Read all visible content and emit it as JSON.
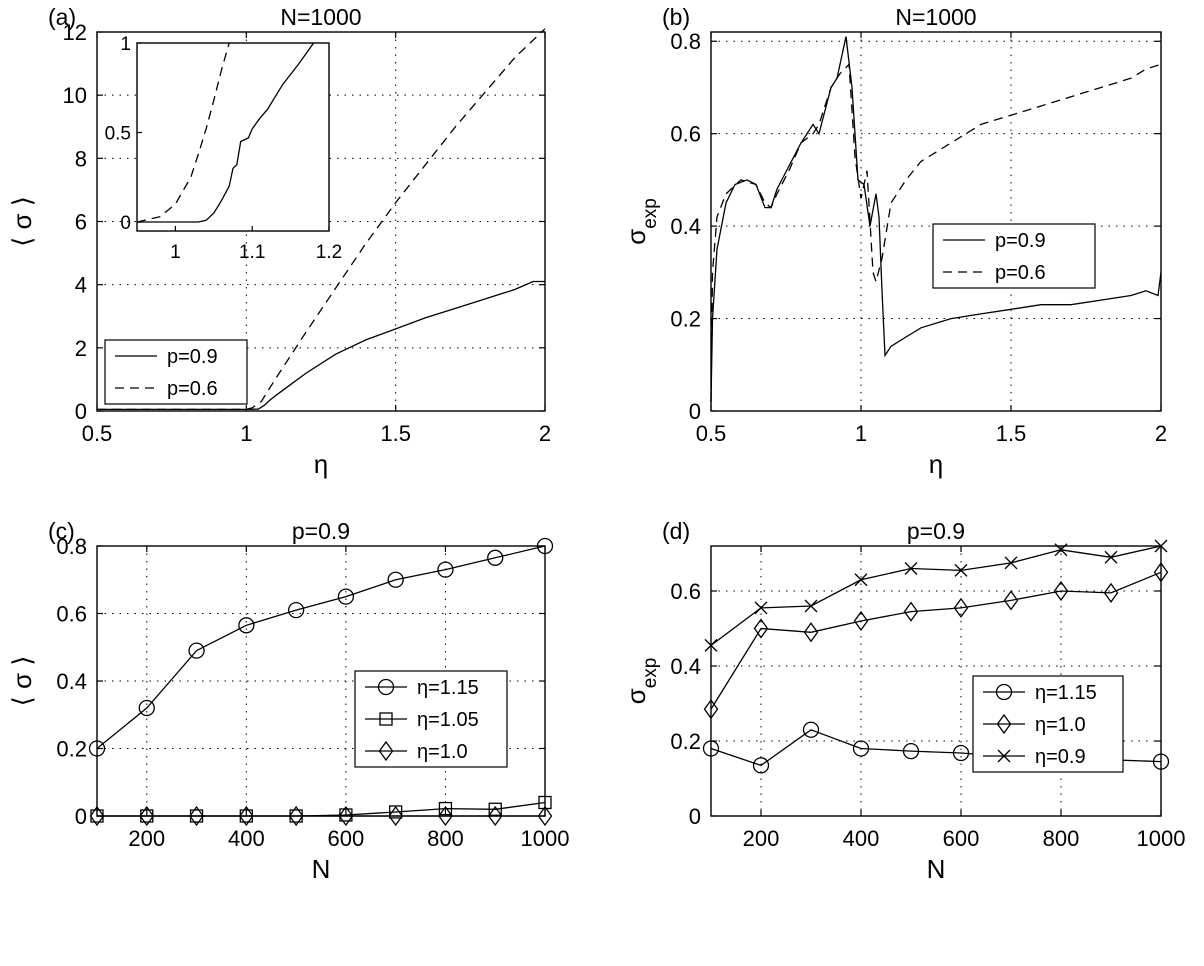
{
  "chart_data": [
    {
      "panel": "(a)",
      "type": "line",
      "title": "N=1000",
      "xlabel": "η",
      "ylabel": "⟨ σ ⟩",
      "xlim": [
        0.5,
        2
      ],
      "ylim": [
        0,
        12
      ],
      "xticks": [
        0.5,
        1,
        1.5,
        2
      ],
      "yticks": [
        0,
        2,
        4,
        6,
        8,
        10,
        12
      ],
      "xtick_labels": [
        "0.5",
        "1",
        "1.5",
        "2"
      ],
      "ytick_labels": [
        "0",
        "2",
        "4",
        "6",
        "8",
        "10",
        "12"
      ],
      "grid": true,
      "legend": "bottom-left",
      "series": [
        {
          "name": "p=0.9",
          "style": "solid",
          "x": [
            0.5,
            0.8,
            1.0,
            1.04,
            1.06,
            1.08,
            1.1,
            1.15,
            1.2,
            1.3,
            1.4,
            1.5,
            1.6,
            1.7,
            1.8,
            1.9,
            1.96,
            2.0
          ],
          "y": [
            0.05,
            0.05,
            0.05,
            0.06,
            0.18,
            0.35,
            0.5,
            0.85,
            1.2,
            1.8,
            2.25,
            2.6,
            2.95,
            3.25,
            3.55,
            3.85,
            4.1,
            4.1
          ]
        },
        {
          "name": "p=0.6",
          "style": "dashed",
          "x": [
            0.5,
            0.9,
            1.0,
            1.02,
            1.05,
            1.1,
            1.2,
            1.3,
            1.4,
            1.5,
            1.6,
            1.7,
            1.8,
            1.9,
            2.0
          ],
          "y": [
            0.05,
            0.05,
            0.05,
            0.1,
            0.3,
            1.05,
            2.5,
            3.9,
            5.3,
            6.6,
            7.8,
            9.0,
            10.1,
            11.2,
            12.1
          ]
        }
      ],
      "inset": {
        "xlim": [
          0.95,
          1.2
        ],
        "ylim": [
          -0.05,
          1
        ],
        "xticks": [
          1,
          1.1,
          1.2
        ],
        "yticks": [
          0,
          0.5,
          1
        ],
        "xtick_labels": [
          "1",
          "1.1",
          "1.2"
        ],
        "ytick_labels": [
          "0",
          "0.5",
          "1"
        ],
        "series": [
          {
            "style": "solid",
            "x": [
              0.95,
              1.0,
              1.03,
              1.04,
              1.05,
              1.06,
              1.07,
              1.075,
              1.08,
              1.085,
              1.095,
              1.1,
              1.11,
              1.12,
              1.13,
              1.14,
              1.16,
              1.18
            ],
            "y": [
              0.0,
              0.0,
              0.0,
              0.01,
              0.05,
              0.12,
              0.2,
              0.3,
              0.32,
              0.45,
              0.47,
              0.52,
              0.58,
              0.63,
              0.7,
              0.77,
              0.88,
              1.0
            ]
          },
          {
            "style": "dashed",
            "x": [
              0.95,
              0.98,
              1.0,
              1.02,
              1.03,
              1.04,
              1.05,
              1.06,
              1.07
            ],
            "y": [
              0.0,
              0.03,
              0.1,
              0.25,
              0.38,
              0.52,
              0.68,
              0.85,
              1.0
            ]
          }
        ]
      }
    },
    {
      "panel": "(b)",
      "type": "line",
      "title": "N=1000",
      "xlabel": "η",
      "ylabel": "σ",
      "ylabel_sub": "exp",
      "xlim": [
        0.5,
        2
      ],
      "ylim": [
        0,
        0.82
      ],
      "xticks": [
        0.5,
        1,
        1.5,
        2
      ],
      "yticks": [
        0,
        0.2,
        0.4,
        0.6,
        0.8
      ],
      "xtick_labels": [
        "0.5",
        "1",
        "1.5",
        "2"
      ],
      "ytick_labels": [
        "0",
        "0.2",
        "0.4",
        "0.6",
        "0.8"
      ],
      "grid": true,
      "legend": "center-right",
      "series": [
        {
          "name": "p=0.9",
          "style": "solid",
          "x": [
            0.5,
            0.505,
            0.52,
            0.55,
            0.58,
            0.62,
            0.65,
            0.68,
            0.7,
            0.72,
            0.76,
            0.8,
            0.84,
            0.86,
            0.9,
            0.92,
            0.95,
            0.97,
            0.99,
            1.01,
            1.03,
            1.05,
            1.06,
            1.07,
            1.08,
            1.1,
            1.15,
            1.2,
            1.3,
            1.4,
            1.5,
            1.6,
            1.7,
            1.8,
            1.9,
            1.95,
            1.99,
            2.0
          ],
          "y": [
            0.02,
            0.2,
            0.35,
            0.45,
            0.49,
            0.5,
            0.49,
            0.44,
            0.44,
            0.48,
            0.53,
            0.58,
            0.62,
            0.6,
            0.7,
            0.72,
            0.81,
            0.7,
            0.5,
            0.49,
            0.4,
            0.47,
            0.42,
            0.26,
            0.12,
            0.14,
            0.16,
            0.18,
            0.2,
            0.21,
            0.22,
            0.23,
            0.23,
            0.24,
            0.25,
            0.26,
            0.25,
            0.3
          ]
        },
        {
          "name": "p=0.6",
          "style": "dashed",
          "x": [
            0.5,
            0.505,
            0.52,
            0.55,
            0.6,
            0.65,
            0.68,
            0.7,
            0.72,
            0.76,
            0.8,
            0.84,
            0.86,
            0.9,
            0.93,
            0.96,
            0.98,
            1.0,
            1.02,
            1.04,
            1.05,
            1.07,
            1.1,
            1.15,
            1.2,
            1.3,
            1.4,
            1.5,
            1.6,
            1.7,
            1.8,
            1.9,
            1.95,
            2.0
          ],
          "y": [
            0.02,
            0.3,
            0.42,
            0.47,
            0.5,
            0.49,
            0.45,
            0.44,
            0.47,
            0.52,
            0.58,
            0.6,
            0.62,
            0.7,
            0.73,
            0.75,
            0.55,
            0.46,
            0.52,
            0.3,
            0.28,
            0.33,
            0.45,
            0.5,
            0.54,
            0.58,
            0.62,
            0.64,
            0.66,
            0.68,
            0.7,
            0.72,
            0.74,
            0.75
          ]
        }
      ]
    },
    {
      "panel": "(c)",
      "type": "line",
      "title": "p=0.9",
      "xlabel": "N",
      "ylabel": "⟨ σ ⟩",
      "xlim": [
        100,
        1000
      ],
      "ylim": [
        0,
        0.8
      ],
      "xticks": [
        200,
        400,
        600,
        800,
        1000
      ],
      "yticks": [
        0,
        0.2,
        0.4,
        0.6,
        0.8
      ],
      "xtick_labels": [
        "200",
        "400",
        "600",
        "800",
        "1000"
      ],
      "ytick_labels": [
        "0",
        "0.2",
        "0.4",
        "0.6",
        "0.8"
      ],
      "grid": true,
      "legend": "center-right",
      "x": [
        100,
        200,
        300,
        400,
        500,
        600,
        700,
        800,
        900,
        1000
      ],
      "series": [
        {
          "name": "η=1.15",
          "marker": "circle",
          "values": [
            0.2,
            0.32,
            0.49,
            0.565,
            0.61,
            0.65,
            0.7,
            0.73,
            0.765,
            0.8
          ]
        },
        {
          "name": "η=1.05",
          "marker": "square",
          "values": [
            0,
            0,
            0,
            0,
            0,
            0.003,
            0.012,
            0.022,
            0.02,
            0.04
          ]
        },
        {
          "name": "η=1.0",
          "marker": "diamond",
          "values": [
            0,
            0,
            0,
            0,
            0,
            0,
            0,
            0,
            0,
            0
          ]
        }
      ]
    },
    {
      "panel": "(d)",
      "type": "line",
      "title": "p=0.9",
      "xlabel": "N",
      "ylabel": "σ",
      "ylabel_sub": "exp",
      "xlim": [
        100,
        1000
      ],
      "ylim": [
        0,
        0.72
      ],
      "xticks": [
        200,
        400,
        600,
        800,
        1000
      ],
      "yticks": [
        0,
        0.2,
        0.4,
        0.6
      ],
      "xtick_labels": [
        "200",
        "400",
        "600",
        "800",
        "1000"
      ],
      "ytick_labels": [
        "0",
        "0.2",
        "0.4",
        "0.6"
      ],
      "grid": true,
      "legend": "center-right",
      "x": [
        100,
        200,
        300,
        400,
        500,
        600,
        700,
        800,
        900,
        1000
      ],
      "series": [
        {
          "name": "η=1.15",
          "marker": "circle",
          "values": [
            0.18,
            0.135,
            0.23,
            0.18,
            0.173,
            0.168,
            0.158,
            0.158,
            0.15,
            0.145
          ]
        },
        {
          "name": "η=1.0",
          "marker": "diamond",
          "values": [
            0.285,
            0.5,
            0.49,
            0.52,
            0.545,
            0.555,
            0.575,
            0.6,
            0.595,
            0.65
          ]
        },
        {
          "name": "η=0.9",
          "marker": "x",
          "values": [
            0.455,
            0.555,
            0.56,
            0.63,
            0.66,
            0.655,
            0.675,
            0.71,
            0.69,
            0.72
          ]
        }
      ]
    }
  ]
}
